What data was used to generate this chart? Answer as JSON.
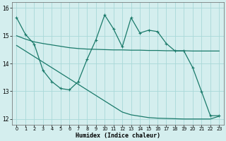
{
  "line1_x": [
    0,
    1,
    2,
    3,
    4,
    5,
    6,
    7,
    8,
    9,
    10,
    11,
    12,
    13,
    14,
    15,
    16,
    17,
    18,
    19,
    20,
    21,
    22,
    23
  ],
  "line1_y": [
    15.65,
    15.05,
    14.7,
    13.75,
    13.35,
    13.1,
    13.05,
    13.35,
    14.15,
    14.85,
    15.75,
    15.25,
    14.6,
    15.65,
    15.1,
    15.2,
    15.15,
    14.72,
    14.45,
    14.45,
    13.85,
    12.99,
    12.12,
    12.12
  ],
  "line2_x": [
    0,
    1,
    2,
    3,
    4,
    5,
    6,
    7,
    8,
    9,
    10,
    11,
    12,
    13,
    14,
    15,
    16,
    17,
    18,
    19,
    20,
    21,
    22,
    23
  ],
  "line2_y": [
    15.0,
    14.88,
    14.78,
    14.72,
    14.67,
    14.62,
    14.57,
    14.54,
    14.52,
    14.51,
    14.5,
    14.49,
    14.49,
    14.48,
    14.48,
    14.47,
    14.47,
    14.46,
    14.46,
    14.46,
    14.45,
    14.45,
    14.45,
    14.45
  ],
  "line3_x": [
    0,
    1,
    2,
    3,
    4,
    5,
    6,
    7,
    8,
    9,
    10,
    11,
    12,
    13,
    14,
    15,
    16,
    17,
    18,
    19,
    20,
    21,
    22,
    23
  ],
  "line3_y": [
    14.65,
    14.45,
    14.25,
    14.05,
    13.85,
    13.65,
    13.45,
    13.25,
    13.05,
    12.85,
    12.65,
    12.45,
    12.25,
    12.15,
    12.1,
    12.05,
    12.03,
    12.02,
    12.01,
    12.0,
    12.0,
    12.0,
    12.0,
    12.1
  ],
  "color": "#1a7a6a",
  "bg_color": "#d4eeee",
  "grid_color": "#a8d8d8",
  "xlabel": "Humidex (Indice chaleur)",
  "ylim": [
    11.8,
    16.2
  ],
  "xlim": [
    -0.5,
    23.5
  ],
  "yticks": [
    12,
    13,
    14,
    15,
    16
  ],
  "xticks": [
    0,
    1,
    2,
    3,
    4,
    5,
    6,
    7,
    8,
    9,
    10,
    11,
    12,
    13,
    14,
    15,
    16,
    17,
    18,
    19,
    20,
    21,
    22,
    23
  ]
}
